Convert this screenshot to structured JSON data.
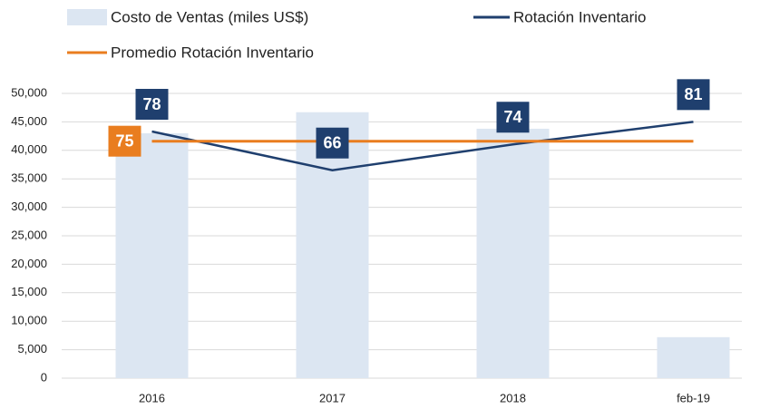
{
  "chart_data": {
    "type": "bar",
    "categories": [
      "2016",
      "2017",
      "2018",
      "feb-19"
    ],
    "series": [
      {
        "name": "Costo de Ventas (miles US$)",
        "type": "bar",
        "color": "#dce6f2",
        "values": [
          43000,
          46700,
          43800,
          7200
        ]
      },
      {
        "name": "Rotación Inventario",
        "type": "line",
        "axis": "y2",
        "color": "#1f3f6e",
        "values": [
          78,
          66,
          74,
          81
        ],
        "labels": true
      },
      {
        "name": "Promedio Rotación Inventario",
        "type": "line",
        "axis": "y2",
        "color": "#e97d1f",
        "values": [
          75,
          75,
          75,
          75
        ],
        "labels": "first"
      }
    ],
    "ylim": [
      0,
      50000
    ],
    "yticks": [
      0,
      {
        "value": 5000,
        "label": "5,000"
      },
      {
        "value": 10000,
        "label": "10,000"
      },
      {
        "value": 15000,
        "label": "15,000"
      },
      {
        "value": 20000,
        "label": "20,000"
      },
      {
        "value": 25000,
        "label": "25,000"
      },
      {
        "value": 30000,
        "label": "30,000"
      },
      {
        "value": 35000,
        "label": "35,000"
      },
      {
        "value": 40000,
        "label": "40,000"
      },
      {
        "value": 45000,
        "label": "45,000"
      },
      {
        "value": 50000,
        "label": "50,000"
      }
    ],
    "y2lim": [
      1.6,
      89.8
    ],
    "grid": true
  }
}
